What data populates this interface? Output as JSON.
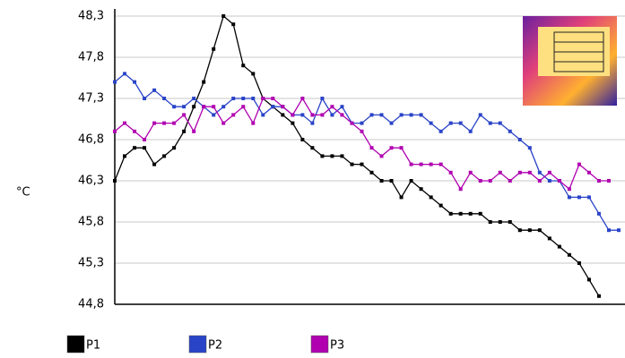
{
  "chart_data": {
    "type": "line",
    "y_label": "°C",
    "ylim": [
      44.8,
      48.3
    ],
    "yticks": [
      {
        "value": 44.8,
        "label": "44,8"
      },
      {
        "value": 45.3,
        "label": "45,3"
      },
      {
        "value": 45.8,
        "label": "45,8"
      },
      {
        "value": 46.3,
        "label": "46,3"
      },
      {
        "value": 46.8,
        "label": "46,8"
      },
      {
        "value": 47.3,
        "label": "47,3"
      },
      {
        "value": 47.8,
        "label": "47,8"
      },
      {
        "value": 48.3,
        "label": "48,3"
      }
    ],
    "grid": true,
    "legend": "bottom-left",
    "series": [
      {
        "name": "P1",
        "color": "#000000",
        "values": [
          46.3,
          46.6,
          46.7,
          46.7,
          46.5,
          46.6,
          46.7,
          46.9,
          47.2,
          47.5,
          47.9,
          48.3,
          48.2,
          47.7,
          47.6,
          47.3,
          47.2,
          47.1,
          47.0,
          46.8,
          46.7,
          46.6,
          46.6,
          46.6,
          46.5,
          46.5,
          46.4,
          46.3,
          46.3,
          46.1,
          46.3,
          46.2,
          46.1,
          46.0,
          45.9,
          45.9,
          45.9,
          45.9,
          45.8,
          45.8,
          45.8,
          45.7,
          45.7,
          45.7,
          45.6,
          45.5,
          45.4,
          45.3,
          45.1,
          44.9,
          null,
          null
        ]
      },
      {
        "name": "P2",
        "color": "#2a44c8",
        "values": [
          47.5,
          47.6,
          47.5,
          47.3,
          47.4,
          47.3,
          47.2,
          47.2,
          47.3,
          47.2,
          47.1,
          47.2,
          47.3,
          47.3,
          47.3,
          47.1,
          47.2,
          47.2,
          47.1,
          47.1,
          47.0,
          47.3,
          47.1,
          47.2,
          47.0,
          47.0,
          47.1,
          47.1,
          47.0,
          47.1,
          47.1,
          47.1,
          47.0,
          46.9,
          47.0,
          47.0,
          46.9,
          47.1,
          47.0,
          47.0,
          46.9,
          46.8,
          46.7,
          46.4,
          46.3,
          46.3,
          46.1,
          46.1,
          46.1,
          45.9,
          45.7,
          45.7
        ]
      },
      {
        "name": "P3",
        "color": "#b000b0",
        "values": [
          46.9,
          47.0,
          46.9,
          46.8,
          47.0,
          47.0,
          47.0,
          47.1,
          46.9,
          47.2,
          47.2,
          47.0,
          47.1,
          47.2,
          47.0,
          47.3,
          47.3,
          47.2,
          47.1,
          47.3,
          47.1,
          47.1,
          47.2,
          47.1,
          47.0,
          46.9,
          46.7,
          46.6,
          46.7,
          46.7,
          46.5,
          46.5,
          46.5,
          46.5,
          46.4,
          46.2,
          46.4,
          46.3,
          46.3,
          46.4,
          46.3,
          46.4,
          46.4,
          46.3,
          46.4,
          46.3,
          46.2,
          46.5,
          46.4,
          46.3,
          46.3,
          null
        ]
      }
    ]
  }
}
